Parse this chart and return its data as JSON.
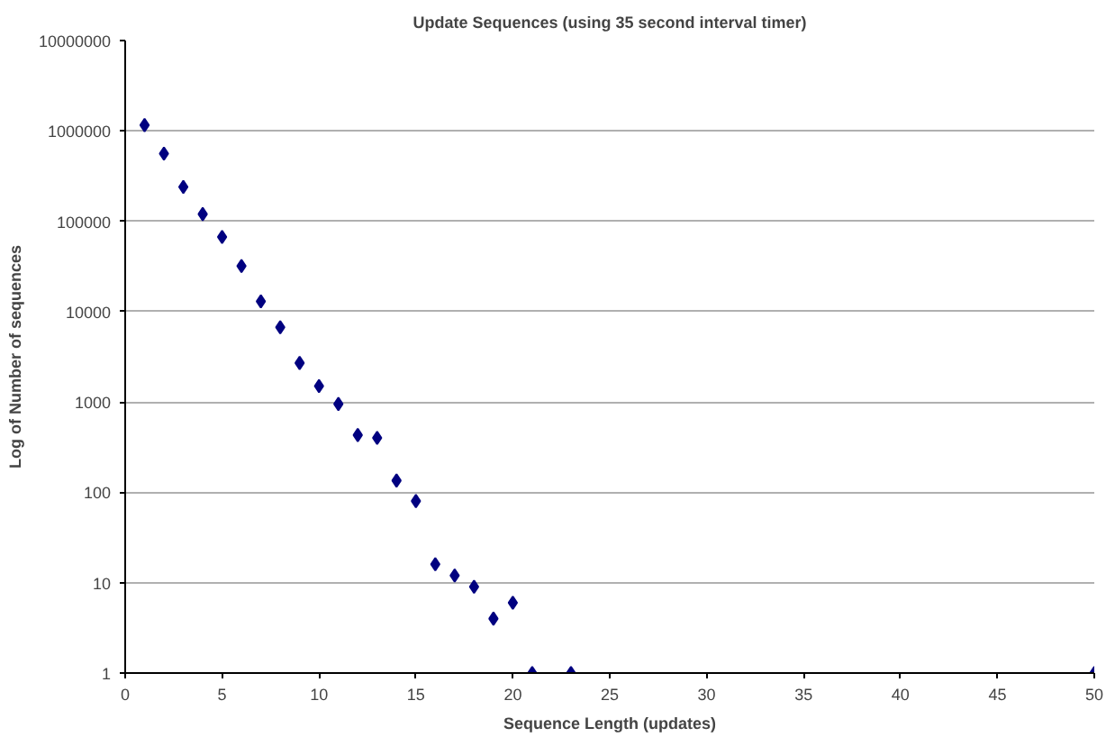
{
  "chart_data": {
    "type": "scatter",
    "title": "Update Sequences (using 35 second interval timer)",
    "xlabel": "Sequence Length (updates)",
    "ylabel": "Log of Number of sequences",
    "x": [
      1,
      2,
      3,
      4,
      5,
      6,
      7,
      8,
      9,
      10,
      11,
      12,
      13,
      14,
      15,
      16,
      17,
      18,
      19,
      20,
      21,
      23,
      50
    ],
    "series": [
      {
        "color": "#000080",
        "values": [
          1160000,
          560000,
          240000,
          120000,
          67000,
          32000,
          13000,
          6700,
          2700,
          1500,
          950,
          430,
          400,
          135,
          80,
          16,
          12,
          9,
          4,
          6,
          1,
          1,
          1
        ]
      }
    ],
    "xlim": [
      0,
      50
    ],
    "xticks": [
      0,
      5,
      10,
      15,
      20,
      25,
      30,
      35,
      40,
      45,
      50
    ],
    "ylim": [
      1,
      10000000
    ],
    "yticks": [
      1,
      10,
      100,
      1000,
      10000,
      100000,
      1000000,
      10000000
    ],
    "log": "y",
    "grid": "y",
    "marker": "diamond"
  }
}
